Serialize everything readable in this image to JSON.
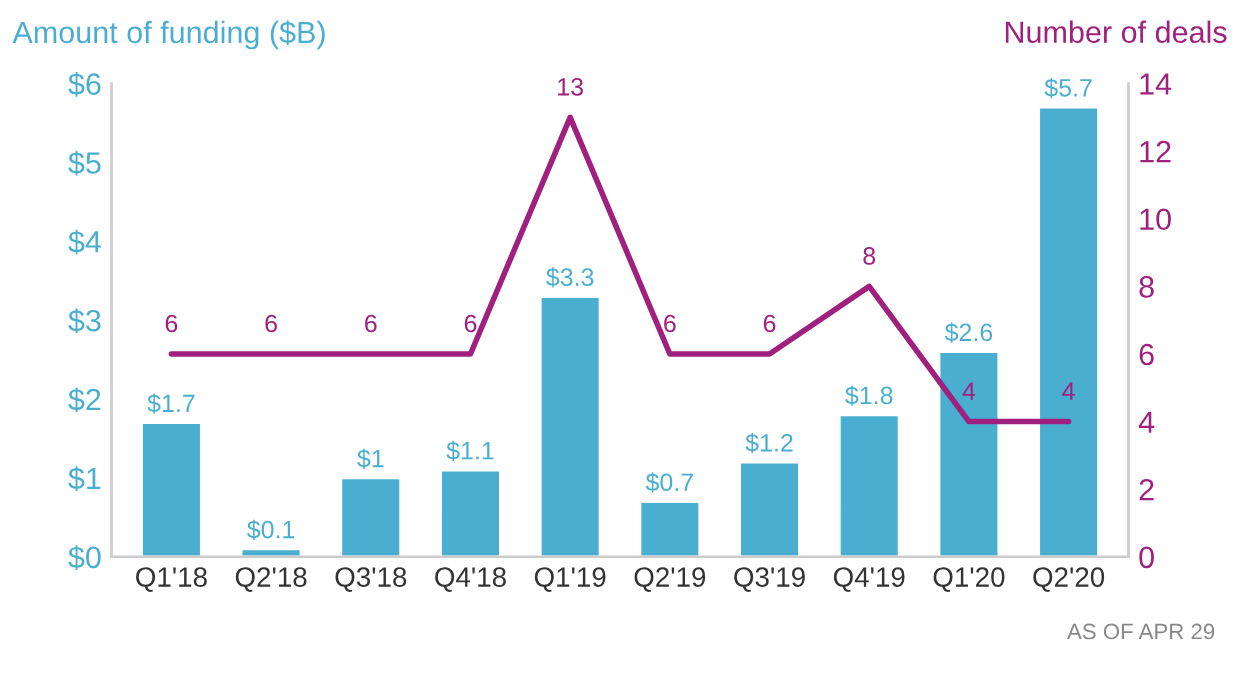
{
  "chart_data": {
    "type": "bar",
    "ylabel": "Amount of funding ($B)",
    "y2label": "Number of deals",
    "categories": [
      "Q1'18",
      "Q2'18",
      "Q3'18",
      "Q4'18",
      "Q1'19",
      "Q2'19",
      "Q3'19",
      "Q4'19",
      "Q1'20",
      "Q2'20"
    ],
    "series": [
      {
        "color": "#4aaed1",
        "values": [
          1.7,
          0.1,
          1,
          1.1,
          3.3,
          0.7,
          1.2,
          1.8,
          2.6,
          5.7
        ],
        "value_labels": [
          "$1.7",
          "$0.1",
          "$1",
          "$1.1",
          "$3.3",
          "$0.7",
          "$1.2",
          "$1.8",
          "$2.6",
          "$5.7"
        ]
      },
      {
        "type": "line",
        "axis": "y2",
        "color": "#a0207f",
        "values": [
          6,
          6,
          6,
          6,
          13,
          6,
          6,
          8,
          4,
          4
        ],
        "value_labels": [
          "6",
          "6",
          "6",
          "6",
          "13",
          "6",
          "6",
          "8",
          "4",
          "4"
        ]
      }
    ],
    "ylim": [
      0,
      6
    ],
    "yticks": [
      {
        "value": 0,
        "label": "$0"
      },
      {
        "value": 1,
        "label": "$1"
      },
      {
        "value": 2,
        "label": "$2"
      },
      {
        "value": 3,
        "label": "$3"
      },
      {
        "value": 4,
        "label": "$4"
      },
      {
        "value": 5,
        "label": "$5"
      },
      {
        "value": 6,
        "label": "$6"
      }
    ],
    "y2lim": [
      0,
      14
    ],
    "y2ticks": [
      0,
      2,
      4,
      6,
      8,
      10,
      12,
      14
    ],
    "grid": false,
    "legend": false,
    "marker": "none",
    "annotations": [
      "AS OF APR 29"
    ]
  }
}
